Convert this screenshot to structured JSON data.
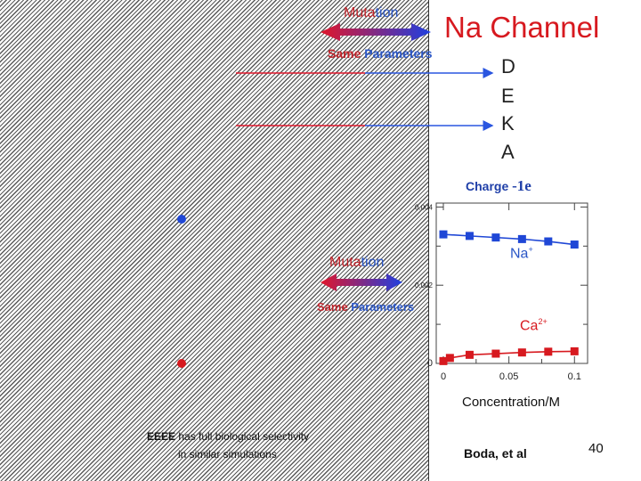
{
  "title": "Na Channel",
  "top_arrow": {
    "mutation_part1": "Muta",
    "mutation_part2": "tion",
    "same_word": "Same",
    "parameters_word": "Parameters"
  },
  "mid_arrow": {
    "mutation_part1": "Muta",
    "mutation_part2": "tion",
    "same_word": "Same",
    "parameters_word": "Parameters"
  },
  "letters": [
    "D",
    "E",
    "K",
    "A"
  ],
  "charge": {
    "label": "Charge",
    "value": "-1e"
  },
  "ion_labels": {
    "na_base": "Na",
    "na_sup": "+",
    "ca_base": "Ca",
    "ca_sup": "2+"
  },
  "footer": {
    "eeee_bold": "EEEE",
    "eeee_rest": " has full biological selectivity",
    "eeee_line2": "in similar simulations",
    "citation": "Boda, et al",
    "slide_number": "40"
  },
  "colors": {
    "red": "#d7191f",
    "blue": "#1f47d6",
    "arrow_start": "#e0162b",
    "arrow_end": "#1f3fe0"
  },
  "chart_data": {
    "type": "scatter",
    "title": "Charge -1e",
    "xlabel": "Concentration/M",
    "ylabel": "",
    "x_ticks": [
      0,
      0.05,
      0.1
    ],
    "x_tick_labels": [
      "0",
      "0.05",
      "0.1"
    ],
    "y_ticks": [
      0,
      0.002,
      0.004
    ],
    "y_tick_labels": [
      "0",
      "0.002",
      "0.004"
    ],
    "xlim": [
      0,
      0.11
    ],
    "ylim": [
      0,
      0.0041
    ],
    "series": [
      {
        "name": "Na+",
        "x": [
          0.0,
          0.02,
          0.04,
          0.06,
          0.08,
          0.1
        ],
        "y": [
          0.0033,
          0.00326,
          0.00322,
          0.00318,
          0.00312,
          0.00304
        ]
      },
      {
        "name": "Ca2+",
        "x": [
          0.0,
          0.005,
          0.02,
          0.04,
          0.06,
          0.08,
          0.1
        ],
        "y": [
          6e-05,
          0.00014,
          0.00022,
          0.00025,
          0.00028,
          0.0003,
          0.00031
        ]
      }
    ],
    "legend_markers": {
      "na_y": 0.00365,
      "ca_y": 0.0
    }
  }
}
